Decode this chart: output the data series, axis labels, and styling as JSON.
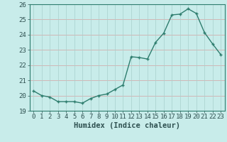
{
  "xlabel": "Humidex (Indice chaleur)",
  "ylabel": "",
  "x": [
    0,
    1,
    2,
    3,
    4,
    5,
    6,
    7,
    8,
    9,
    10,
    11,
    12,
    13,
    14,
    15,
    16,
    17,
    18,
    19,
    20,
    21,
    22,
    23
  ],
  "y": [
    20.3,
    20.0,
    19.9,
    19.6,
    19.6,
    19.6,
    19.5,
    19.8,
    20.0,
    20.1,
    20.4,
    20.7,
    22.55,
    22.5,
    22.4,
    23.5,
    24.1,
    25.3,
    25.35,
    25.7,
    25.4,
    24.15,
    23.4,
    22.7
  ],
  "line_color": "#2e7d6e",
  "marker_color": "#2e7d6e",
  "bg_color": "#c8ecea",
  "grid_color_h": "#d4a0a0",
  "grid_color_v": "#a8d0cc",
  "axis_color": "#2e7d6e",
  "text_color": "#2e5050",
  "ylim": [
    19,
    26
  ],
  "yticks": [
    19,
    20,
    21,
    22,
    23,
    24,
    25,
    26
  ],
  "xlim": [
    -0.5,
    23.5
  ],
  "xticks": [
    0,
    1,
    2,
    3,
    4,
    5,
    6,
    7,
    8,
    9,
    10,
    11,
    12,
    13,
    14,
    15,
    16,
    17,
    18,
    19,
    20,
    21,
    22,
    23
  ],
  "tick_fontsize": 6.5,
  "label_fontsize": 7.5,
  "linewidth": 1.0,
  "markersize": 2.5
}
